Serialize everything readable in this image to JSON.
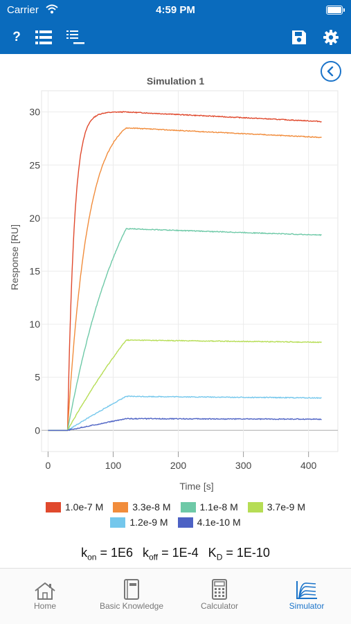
{
  "status": {
    "carrier": "Carrier",
    "time": "4:59 PM"
  },
  "toolbar": {
    "help_label": "?"
  },
  "colors": {
    "bar": "#0a6bbd",
    "accent": "#1a73c9"
  },
  "chart_data": {
    "type": "line",
    "title": "Simulation 1",
    "xlabel": "Time [s]",
    "ylabel": "Response [RU]",
    "xlim": [
      -10,
      445
    ],
    "ylim": [
      -2,
      32
    ],
    "xticks": [
      0,
      100,
      200,
      300,
      400
    ],
    "yticks": [
      0,
      5,
      10,
      15,
      20,
      25,
      30
    ],
    "injection_start": 30,
    "injection_end": 120,
    "end_time": 420,
    "kon": 1000000,
    "koff": 0.0001,
    "series": [
      {
        "name": "1.0e-7 M",
        "conc": 1e-07,
        "plateau": 30.0,
        "end": 29.1,
        "color": "#e0492d"
      },
      {
        "name": "3.3e-8 M",
        "conc": 3.3e-08,
        "plateau": 28.5,
        "end": 27.6,
        "color": "#f18c3b"
      },
      {
        "name": "1.1e-8 M",
        "conc": 1.1e-08,
        "plateau": 19.0,
        "end": 18.4,
        "color": "#6ec9a7"
      },
      {
        "name": "3.7e-9 M",
        "conc": 3.7e-09,
        "plateau": 8.5,
        "end": 8.3,
        "color": "#b6dd55"
      },
      {
        "name": "1.2e-9 M",
        "conc": 1.2e-09,
        "plateau": 3.2,
        "end": 3.05,
        "color": "#74c7ec"
      },
      {
        "name": "4.1e-10 M",
        "conc": 4.1e-10,
        "plateau": 1.1,
        "end": 1.05,
        "color": "#4d62c4"
      }
    ]
  },
  "params": {
    "k": "k",
    "on_sub": "on",
    "on_val": " = 1E6",
    "off_sub": "off",
    "off_val": " = 1E-4",
    "K": "K",
    "d_sub": "D",
    "d_val": " = 1E-10"
  },
  "tabs": [
    {
      "label": "Home",
      "icon": "house-icon"
    },
    {
      "label": "Basic Knowledge",
      "icon": "book-icon"
    },
    {
      "label": "Calculator",
      "icon": "calculator-icon"
    },
    {
      "label": "Simulator",
      "icon": "simulator-icon",
      "active": true
    }
  ]
}
